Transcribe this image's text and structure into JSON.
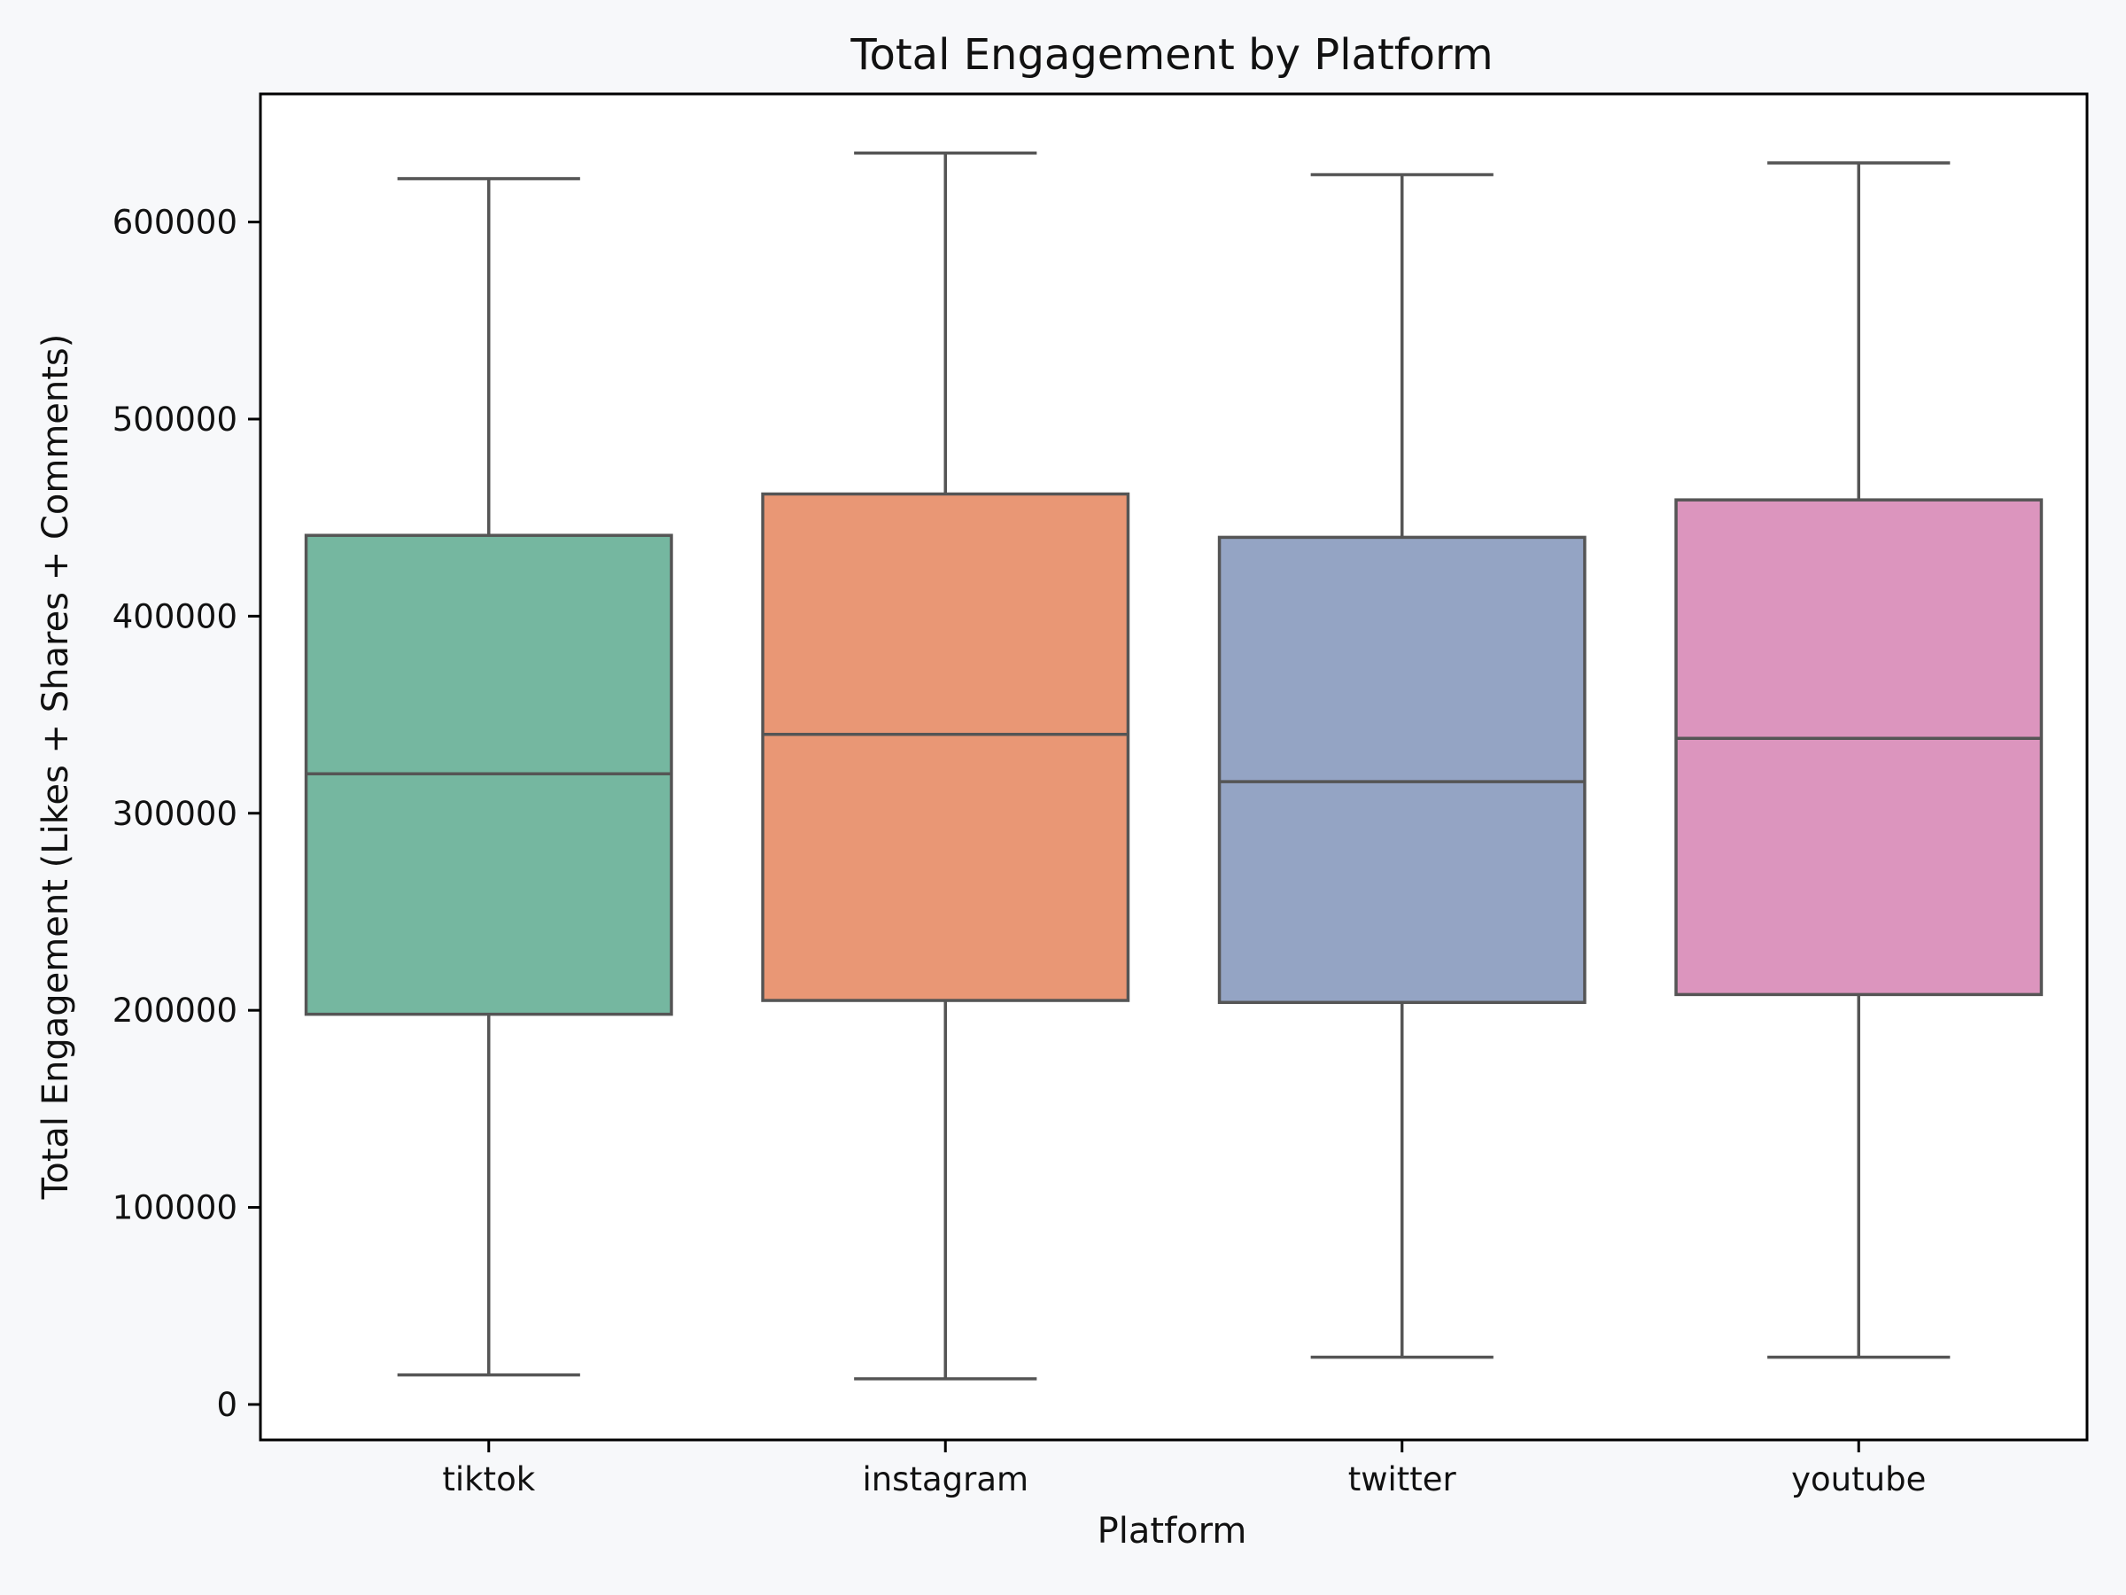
{
  "chart_data": {
    "type": "box",
    "title": "Total Engagement by Platform",
    "xlabel": "Platform",
    "ylabel": "Total Engagement (Likes + Shares + Comments)",
    "ylim": [
      -18000,
      665000
    ],
    "yticks": [
      0,
      100000,
      200000,
      300000,
      400000,
      500000,
      600000
    ],
    "ytick_labels": [
      "0",
      "100000",
      "200000",
      "300000",
      "400000",
      "500000",
      "600000"
    ],
    "grid": false,
    "legend": "none",
    "categories": [
      "tiktok",
      "instagram",
      "twitter",
      "youtube"
    ],
    "boxes": [
      {
        "category": "tiktok",
        "whisker_low": 15000,
        "q1": 198000,
        "median": 320000,
        "q3": 441000,
        "whisker_high": 622000,
        "color": "#75b7a0"
      },
      {
        "category": "instagram",
        "whisker_low": 13000,
        "q1": 205000,
        "median": 340000,
        "q3": 462000,
        "whisker_high": 635000,
        "color": "#e99775"
      },
      {
        "category": "twitter",
        "whisker_low": 24000,
        "q1": 204000,
        "median": 316000,
        "q3": 440000,
        "whisker_high": 624000,
        "color": "#94a4c4"
      },
      {
        "category": "youtube",
        "whisker_low": 24000,
        "q1": 208000,
        "median": 338000,
        "q3": 459000,
        "whisker_high": 630000,
        "color": "#dc95be"
      }
    ]
  }
}
